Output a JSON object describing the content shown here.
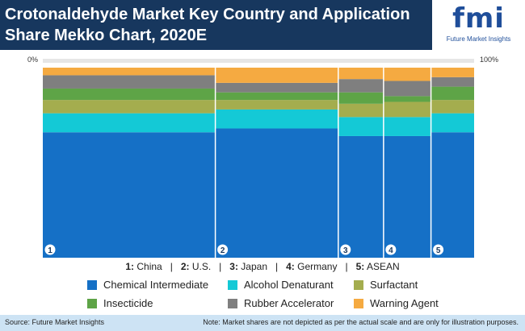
{
  "header": {
    "title_line1": "Crotonaldehyde Market Key Country and Application",
    "title_line2": "Share Mekko Chart, 2020E",
    "logo_text": "fmi",
    "logo_subtitle": "Future Market Insights"
  },
  "chart_data": {
    "type": "mekko",
    "title": "Crotonaldehyde Market Key Country and Application Share Mekko Chart, 2020E",
    "axis_min_label": "0%",
    "axis_max_label": "100%",
    "categories": [
      {
        "num": "1",
        "label": "1:",
        "name": "China",
        "width": 40
      },
      {
        "num": "2",
        "label": "2:",
        "name": "U.S.",
        "width": 28.5
      },
      {
        "num": "3",
        "label": "3:",
        "name": "Japan",
        "width": 10.5
      },
      {
        "num": "4",
        "label": "4:",
        "name": "Germany",
        "width": 11
      },
      {
        "num": "5",
        "label": "5:",
        "name": "ASEAN",
        "width": 10
      }
    ],
    "series": [
      {
        "name": "Chemical Intermediate",
        "color": "#1570c6",
        "values": [
          66,
          68,
          64,
          64,
          66
        ]
      },
      {
        "name": "Alcohol Denaturant",
        "color": "#14c9d6",
        "values": [
          10,
          10,
          10,
          10,
          10
        ]
      },
      {
        "name": "Surfactant",
        "color": "#a4ad4e",
        "values": [
          7,
          5,
          7,
          8,
          7
        ]
      },
      {
        "name": "Insecticide",
        "color": "#5ea447",
        "values": [
          6,
          4,
          6,
          3,
          7
        ]
      },
      {
        "name": "Rubber Accelerator",
        "color": "#7f7f7f",
        "values": [
          7,
          5,
          7,
          8,
          5
        ]
      },
      {
        "name": "Warning Agent",
        "color": "#f5aa41",
        "values": [
          4,
          8,
          6,
          7,
          5
        ]
      }
    ]
  },
  "footer": {
    "source": "Source: Future Market Insights",
    "note": "Note: Market shares are not depicted as per the actual scale and are only for illustration purposes."
  }
}
